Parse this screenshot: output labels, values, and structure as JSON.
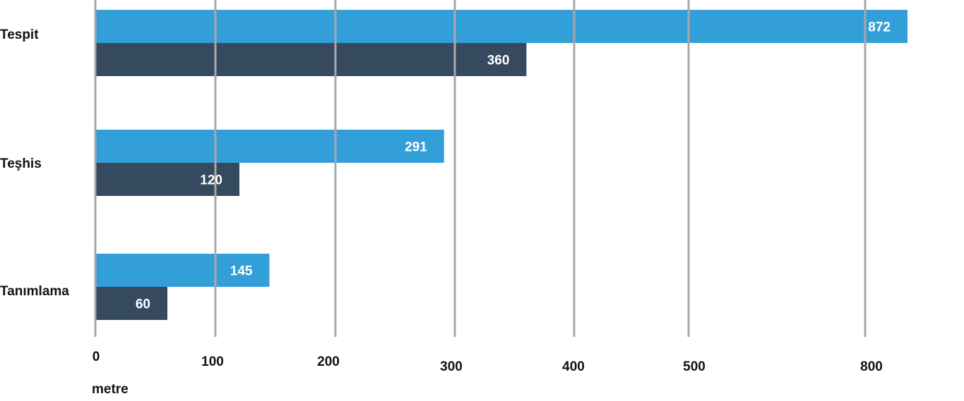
{
  "chart_data": {
    "type": "bar",
    "orientation": "horizontal",
    "categories": [
      "Tespit",
      "Teşhis",
      "Tanımlama"
    ],
    "series": [
      {
        "values": [
          872,
          291,
          145
        ],
        "color": "#339fd9"
      },
      {
        "values": [
          360,
          120,
          60
        ],
        "color": "#354a5f"
      }
    ],
    "x_ticks": [
      "0",
      "100",
      "200",
      "300",
      "400",
      "500",
      "800"
    ],
    "xlabel": "metre",
    "ylabel": "",
    "title": "",
    "grid": true,
    "gridline_color": "#a8a8a8",
    "value_label_color": "#ffffff"
  }
}
